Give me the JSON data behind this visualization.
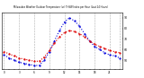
{
  "title": "Milwaukee Weather Outdoor Temperature (vs) THSW Index per Hour (Last 24 Hours)",
  "hours": [
    0,
    1,
    2,
    3,
    4,
    5,
    6,
    7,
    8,
    9,
    10,
    11,
    12,
    13,
    14,
    15,
    16,
    17,
    18,
    19,
    20,
    21,
    22,
    23
  ],
  "temp": [
    58,
    56,
    54,
    52,
    51,
    50,
    49,
    49,
    53,
    59,
    66,
    72,
    76,
    78,
    77,
    75,
    72,
    68,
    65,
    63,
    61,
    59,
    58,
    57
  ],
  "thsw": [
    55,
    52,
    50,
    48,
    47,
    46,
    45,
    45,
    50,
    58,
    68,
    78,
    86,
    90,
    87,
    82,
    75,
    68,
    63,
    60,
    57,
    55,
    54,
    52
  ],
  "temp_color": "#dd0000",
  "thsw_color": "#0000dd",
  "bg_color": "#ffffff",
  "grid_color": "#999999",
  "ylim_min": 42,
  "ylim_max": 95,
  "xtick_interval": 3,
  "ytick_values": [
    50,
    60,
    70,
    80,
    90
  ],
  "vgrid_hours": [
    0,
    3,
    6,
    9,
    12,
    15,
    18,
    21,
    23
  ]
}
